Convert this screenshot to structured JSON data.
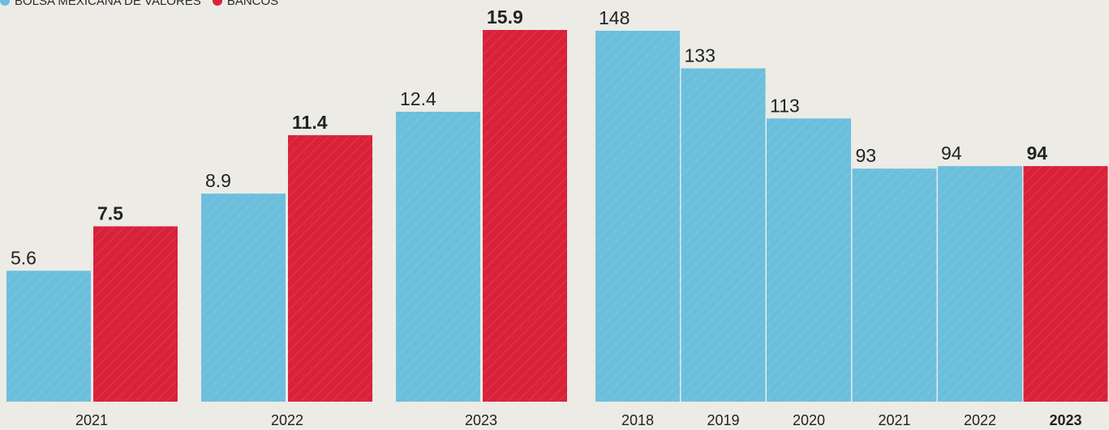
{
  "legend": [
    {
      "label": "BOLSA MEXICANA DE VALORES",
      "color": "#6cbfdc"
    },
    {
      "label": "BANCOS",
      "color": "#d9223a"
    }
  ],
  "colors": {
    "blue": "#6cbfdc",
    "red": "#d9223a",
    "label": "#222222"
  },
  "chart_data": [
    {
      "type": "bar",
      "categories": [
        "2021",
        "2022",
        "2023"
      ],
      "series": [
        {
          "name": "BOLSA MEXICANA DE VALORES",
          "values": [
            5.6,
            8.9,
            12.4
          ],
          "labels": [
            "5.6",
            "8.9",
            "12.4"
          ]
        },
        {
          "name": "BANCOS",
          "values": [
            7.5,
            11.4,
            15.9
          ],
          "labels": [
            "7.5",
            "11.4",
            "15.9"
          ]
        }
      ],
      "ylim": [
        0,
        15.9
      ],
      "grid": false,
      "legend": "top-left"
    },
    {
      "type": "bar",
      "categories": [
        "2018",
        "2019",
        "2020",
        "2021",
        "2022",
        "2023"
      ],
      "values": [
        148,
        133,
        113,
        93,
        94,
        94
      ],
      "labels": [
        "148",
        "133",
        "113",
        "93",
        "94",
        "94"
      ],
      "highlight_index": 5,
      "ylim": [
        0,
        148
      ],
      "grid": false
    }
  ]
}
